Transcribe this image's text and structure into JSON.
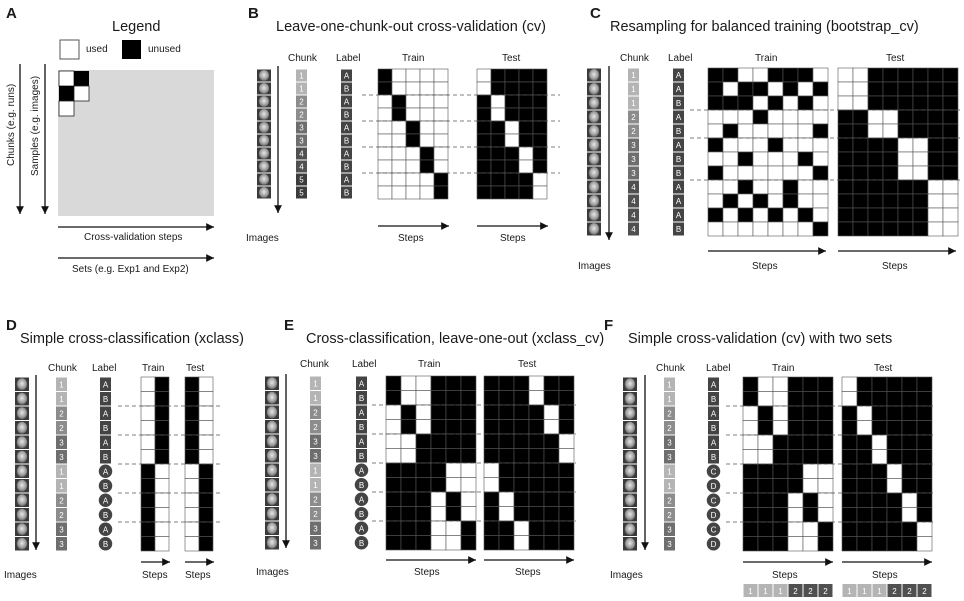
{
  "panels": [
    {
      "id": "A",
      "letter": "A",
      "title": "Legend"
    },
    {
      "id": "B",
      "letter": "B",
      "title": "Leave-one-chunk-out cross-validation (cv)"
    },
    {
      "id": "C",
      "letter": "C",
      "title": "Resampling for balanced training (bootstrap_cv)"
    },
    {
      "id": "D",
      "letter": "D",
      "title": "Simple cross-classification (xclass)"
    },
    {
      "id": "E",
      "letter": "E",
      "title": "Cross-classification, leave-one-out (xclass_cv)"
    },
    {
      "id": "F",
      "letter": "F",
      "title": "Simple cross-validation (cv) with two sets"
    }
  ],
  "legend": {
    "used_label": "used",
    "unused_label": "unused",
    "chunks_axis": "Chunks (e.g. runs)",
    "samples_axis": "Samples (e.g. images)",
    "steps_axis": "Cross-validation steps",
    "sets_axis": "Sets (e.g. Exp1 and Exp2)",
    "ellipsis": "...",
    "vdots": "⋮"
  },
  "common": {
    "chunk": "Chunk",
    "label": "Label",
    "train": "Train",
    "test": "Test",
    "steps": "Steps",
    "images": "Images"
  },
  "colors": {
    "used": "#ffffff",
    "unused": "#000000",
    "chunk1": "#b4b4b4",
    "chunk2": "#8c8c8c",
    "chunk3": "#6e6e6e",
    "chunk4": "#505050",
    "chunk5": "#3c3c3c",
    "label": "#444444",
    "legend_bg": "#d9d9d9"
  },
  "B": {
    "chunks": [
      "1",
      "1",
      "2",
      "2",
      "3",
      "3",
      "4",
      "4",
      "5",
      "5"
    ],
    "labels": [
      "A",
      "B",
      "A",
      "B",
      "A",
      "B",
      "A",
      "B",
      "A",
      "B"
    ],
    "n_steps": 5
  },
  "C": {
    "chunks": [
      "1",
      "1",
      "1",
      "2",
      "2",
      "3",
      "3",
      "3",
      "4",
      "4",
      "4",
      "4"
    ],
    "labels": [
      "A",
      "A",
      "B",
      "A",
      "B",
      "A",
      "B",
      "B",
      "A",
      "A",
      "A",
      "B"
    ],
    "n_steps": 8
  },
  "D": {
    "chunks": [
      "1",
      "1",
      "2",
      "2",
      "3",
      "3",
      "1",
      "1",
      "2",
      "2",
      "3",
      "3"
    ],
    "labels": [
      "A",
      "B",
      "A",
      "B",
      "A",
      "B",
      "A",
      "B",
      "A",
      "B",
      "A",
      "B"
    ],
    "n_steps": 2
  },
  "E": {
    "chunks": [
      "1",
      "1",
      "2",
      "2",
      "3",
      "3",
      "1",
      "1",
      "2",
      "2",
      "3",
      "3"
    ],
    "labels": [
      "A",
      "B",
      "A",
      "B",
      "A",
      "B",
      "A",
      "B",
      "A",
      "B",
      "A",
      "B"
    ],
    "n_steps": 6
  },
  "F": {
    "chunks": [
      "1",
      "1",
      "2",
      "2",
      "3",
      "3",
      "1",
      "1",
      "2",
      "2",
      "3",
      "3"
    ],
    "labels": [
      "A",
      "B",
      "A",
      "B",
      "A",
      "B",
      "C",
      "D",
      "C",
      "D",
      "C",
      "D"
    ],
    "n_steps": 6,
    "sets": [
      "1",
      "1",
      "1",
      "2",
      "2",
      "2"
    ]
  }
}
